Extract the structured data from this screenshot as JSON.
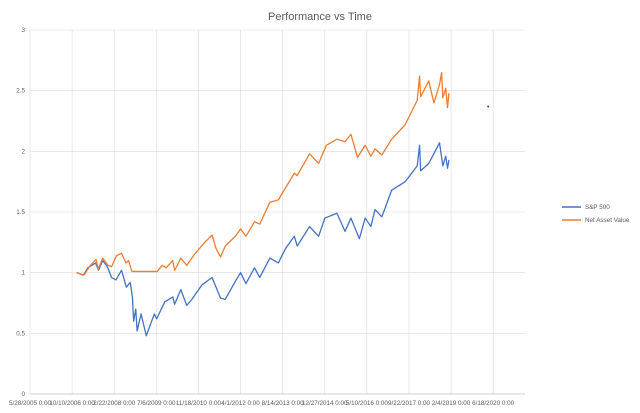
{
  "chart_data": {
    "type": "line",
    "title": "Performance vs Time",
    "xlabel": "",
    "ylabel": "",
    "ylim": [
      0,
      3
    ],
    "xlim": [
      "2005-05-28",
      "2021-07-01"
    ],
    "y_ticks": [
      "0",
      "0.5",
      "1",
      "1.5",
      "2",
      "2.5",
      "3"
    ],
    "x_ticks": [
      {
        "date": "2005-05-28",
        "label": "5/28/2005 0:00"
      },
      {
        "date": "2006-10-10",
        "label": "10/10/2006 0:00"
      },
      {
        "date": "2008-02-22",
        "label": "2/22/2008 0:00"
      },
      {
        "date": "2009-07-06",
        "label": "7/6/2009 0:00"
      },
      {
        "date": "2010-11-18",
        "label": "11/18/2010 0:00"
      },
      {
        "date": "2012-04-01",
        "label": "4/1/2012 0:00"
      },
      {
        "date": "2013-08-14",
        "label": "8/14/2013 0:00"
      },
      {
        "date": "2014-12-27",
        "label": "12/27/2014 0:00"
      },
      {
        "date": "2016-05-10",
        "label": "5/10/2016 0:00"
      },
      {
        "date": "2017-09-22",
        "label": "9/22/2017 0:00"
      },
      {
        "date": "2019-02-04",
        "label": "2/4/2019 0:00"
      },
      {
        "date": "2020-06-18",
        "label": "6/18/2020 0:00"
      }
    ],
    "grid": true,
    "legend_position": "right",
    "series": [
      {
        "name": "S&P 500",
        "color": "#4472C4",
        "points": [
          [
            "2006-12-01",
            1.0
          ],
          [
            "2007-02-20",
            0.98
          ],
          [
            "2007-04-15",
            1.04
          ],
          [
            "2007-07-15",
            1.08
          ],
          [
            "2007-08-20",
            1.02
          ],
          [
            "2007-10-09",
            1.1
          ],
          [
            "2007-12-01",
            1.05
          ],
          [
            "2008-01-22",
            0.96
          ],
          [
            "2008-03-15",
            0.94
          ],
          [
            "2008-05-19",
            1.02
          ],
          [
            "2008-07-15",
            0.88
          ],
          [
            "2008-08-30",
            0.92
          ],
          [
            "2008-09-25",
            0.8
          ],
          [
            "2008-10-10",
            0.6
          ],
          [
            "2008-11-04",
            0.7
          ],
          [
            "2008-11-20",
            0.52
          ],
          [
            "2009-01-06",
            0.66
          ],
          [
            "2009-03-09",
            0.48
          ],
          [
            "2009-06-12",
            0.66
          ],
          [
            "2009-07-10",
            0.62
          ],
          [
            "2009-10-15",
            0.76
          ],
          [
            "2010-01-19",
            0.8
          ],
          [
            "2010-02-08",
            0.74
          ],
          [
            "2010-04-23",
            0.86
          ],
          [
            "2010-07-02",
            0.73
          ],
          [
            "2010-09-01",
            0.78
          ],
          [
            "2010-12-31",
            0.9
          ],
          [
            "2011-04-29",
            0.96
          ],
          [
            "2011-08-08",
            0.79
          ],
          [
            "2011-10-03",
            0.78
          ],
          [
            "2012-01-31",
            0.93
          ],
          [
            "2012-04-02",
            1.0
          ],
          [
            "2012-06-04",
            0.91
          ],
          [
            "2012-09-14",
            1.04
          ],
          [
            "2012-11-15",
            0.96
          ],
          [
            "2013-03-15",
            1.12
          ],
          [
            "2013-06-24",
            1.08
          ],
          [
            "2013-09-18",
            1.2
          ],
          [
            "2013-12-31",
            1.3
          ],
          [
            "2014-02-03",
            1.22
          ],
          [
            "2014-06-30",
            1.38
          ],
          [
            "2014-10-15",
            1.3
          ],
          [
            "2014-12-29",
            1.45
          ],
          [
            "2015-05-21",
            1.49
          ],
          [
            "2015-08-25",
            1.34
          ],
          [
            "2015-11-03",
            1.45
          ],
          [
            "2016-02-11",
            1.28
          ],
          [
            "2016-04-20",
            1.45
          ],
          [
            "2016-06-27",
            1.38
          ],
          [
            "2016-08-15",
            1.52
          ],
          [
            "2016-11-04",
            1.46
          ],
          [
            "2017-03-01",
            1.68
          ],
          [
            "2017-08-08",
            1.75
          ],
          [
            "2017-12-29",
            1.88
          ],
          [
            "2018-01-26",
            2.05
          ],
          [
            "2018-02-08",
            1.84
          ],
          [
            "2018-05-15",
            1.9
          ],
          [
            "2018-09-20",
            2.07
          ],
          [
            "2018-10-29",
            1.88
          ],
          [
            "2018-12-03",
            1.96
          ],
          [
            "2018-12-24",
            1.86
          ],
          [
            "2019-01-10",
            1.93
          ]
        ]
      },
      {
        "name": "Net Asset Value",
        "color": "#ED7D31",
        "points": [
          [
            "2006-12-01",
            1.0
          ],
          [
            "2007-02-27",
            0.98
          ],
          [
            "2007-05-15",
            1.06
          ],
          [
            "2007-07-20",
            1.11
          ],
          [
            "2007-08-16",
            1.03
          ],
          [
            "2007-10-09",
            1.12
          ],
          [
            "2007-12-10",
            1.06
          ],
          [
            "2008-01-22",
            1.05
          ],
          [
            "2008-03-20",
            1.14
          ],
          [
            "2008-05-19",
            1.16
          ],
          [
            "2008-07-10",
            1.08
          ],
          [
            "2008-08-10",
            1.1
          ],
          [
            "2008-09-10",
            1.03
          ],
          [
            "2008-09-20",
            1.01
          ],
          [
            "2009-07-15",
            1.01
          ],
          [
            "2009-09-15",
            1.06
          ],
          [
            "2009-11-01",
            1.04
          ],
          [
            "2010-01-15",
            1.1
          ],
          [
            "2010-02-10",
            1.02
          ],
          [
            "2010-04-23",
            1.12
          ],
          [
            "2010-07-02",
            1.06
          ],
          [
            "2010-10-01",
            1.15
          ],
          [
            "2011-02-01",
            1.25
          ],
          [
            "2011-04-29",
            1.31
          ],
          [
            "2011-06-15",
            1.2
          ],
          [
            "2011-08-08",
            1.13
          ],
          [
            "2011-10-03",
            1.22
          ],
          [
            "2012-01-31",
            1.3
          ],
          [
            "2012-04-02",
            1.36
          ],
          [
            "2012-06-04",
            1.3
          ],
          [
            "2012-09-14",
            1.42
          ],
          [
            "2012-11-15",
            1.4
          ],
          [
            "2013-03-15",
            1.58
          ],
          [
            "2013-06-24",
            1.6
          ],
          [
            "2013-09-18",
            1.7
          ],
          [
            "2013-12-31",
            1.82
          ],
          [
            "2014-02-03",
            1.8
          ],
          [
            "2014-06-30",
            1.98
          ],
          [
            "2014-10-15",
            1.9
          ],
          [
            "2015-01-15",
            2.05
          ],
          [
            "2015-05-21",
            2.1
          ],
          [
            "2015-08-25",
            2.08
          ],
          [
            "2015-11-03",
            2.14
          ],
          [
            "2016-01-20",
            1.95
          ],
          [
            "2016-04-20",
            2.05
          ],
          [
            "2016-06-27",
            1.96
          ],
          [
            "2016-08-15",
            2.02
          ],
          [
            "2016-11-04",
            1.97
          ],
          [
            "2017-03-01",
            2.1
          ],
          [
            "2017-08-08",
            2.22
          ],
          [
            "2017-12-29",
            2.42
          ],
          [
            "2018-01-26",
            2.62
          ],
          [
            "2018-02-08",
            2.45
          ],
          [
            "2018-05-15",
            2.58
          ],
          [
            "2018-07-15",
            2.4
          ],
          [
            "2018-09-20",
            2.55
          ],
          [
            "2018-10-15",
            2.65
          ],
          [
            "2018-10-29",
            2.44
          ],
          [
            "2018-12-03",
            2.52
          ],
          [
            "2018-12-24",
            2.36
          ],
          [
            "2019-01-10",
            2.48
          ]
        ]
      },
      {
        "name": "",
        "color": "#404040",
        "points": [
          [
            "2020-04-20",
            2.37
          ]
        ]
      }
    ]
  }
}
